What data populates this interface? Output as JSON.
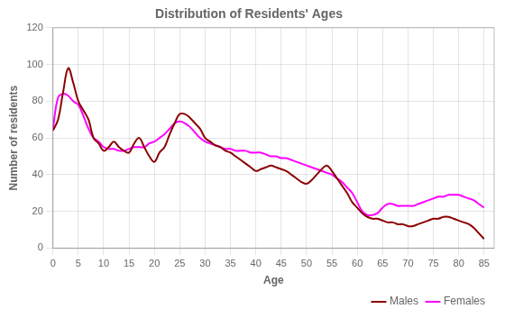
{
  "chart_data": {
    "type": "line",
    "title": "Distribution of Residents' Ages",
    "xlabel": "Age",
    "ylabel": "Number of residents",
    "x": [
      0,
      1,
      2,
      3,
      4,
      5,
      6,
      7,
      8,
      9,
      10,
      11,
      12,
      13,
      14,
      15,
      16,
      17,
      18,
      19,
      20,
      21,
      22,
      23,
      24,
      25,
      26,
      27,
      28,
      29,
      30,
      31,
      32,
      33,
      34,
      35,
      36,
      37,
      38,
      39,
      40,
      41,
      42,
      43,
      44,
      45,
      46,
      47,
      48,
      49,
      50,
      51,
      52,
      53,
      54,
      55,
      56,
      57,
      58,
      59,
      60,
      61,
      62,
      63,
      64,
      65,
      66,
      67,
      68,
      69,
      70,
      71,
      72,
      73,
      74,
      75,
      76,
      77,
      78,
      79,
      80,
      81,
      82,
      83,
      84,
      85
    ],
    "series": [
      {
        "name": "Males",
        "color": "#8b0000",
        "values": [
          64,
          70,
          85,
          98,
          90,
          80,
          75,
          70,
          60,
          57,
          53,
          55,
          58,
          55,
          53,
          52,
          57,
          60,
          55,
          50,
          47,
          52,
          55,
          62,
          68,
          73,
          73,
          71,
          68,
          65,
          60,
          58,
          56,
          55,
          53,
          52,
          50,
          48,
          46,
          44,
          42,
          43,
          44,
          45,
          44,
          43,
          42,
          40,
          38,
          36,
          35,
          37,
          40,
          43,
          45,
          42,
          38,
          34,
          30,
          25,
          22,
          19,
          17,
          16,
          16,
          15,
          14,
          14,
          13,
          13,
          12,
          12,
          13,
          14,
          15,
          16,
          16,
          17,
          17,
          16,
          15,
          14,
          13,
          11,
          8,
          5
        ]
      },
      {
        "name": "Females",
        "color": "#ff00ff",
        "values": [
          65,
          82,
          84,
          83,
          80,
          78,
          72,
          65,
          60,
          58,
          55,
          54,
          54,
          53,
          53,
          54,
          55,
          55,
          55,
          57,
          58,
          60,
          62,
          65,
          68,
          69,
          68,
          66,
          63,
          60,
          58,
          57,
          56,
          55,
          54,
          54,
          53,
          53,
          53,
          52,
          52,
          52,
          51,
          50,
          50,
          49,
          49,
          48,
          47,
          46,
          45,
          44,
          43,
          42,
          41,
          40,
          38,
          36,
          33,
          30,
          25,
          20,
          18,
          18,
          19,
          22,
          24,
          24,
          23,
          23,
          23,
          23,
          24,
          25,
          26,
          27,
          28,
          28,
          29,
          29,
          29,
          28,
          27,
          26,
          24,
          22
        ]
      }
    ],
    "xlim": [
      0,
      87
    ],
    "xticks": [
      0,
      5,
      10,
      15,
      20,
      25,
      30,
      35,
      40,
      45,
      50,
      55,
      60,
      65,
      70,
      75,
      80,
      85
    ],
    "ylim": [
      0,
      120
    ],
    "yticks": [
      0,
      20,
      40,
      60,
      80,
      100,
      120
    ],
    "grid": true,
    "legend": "bottom"
  }
}
